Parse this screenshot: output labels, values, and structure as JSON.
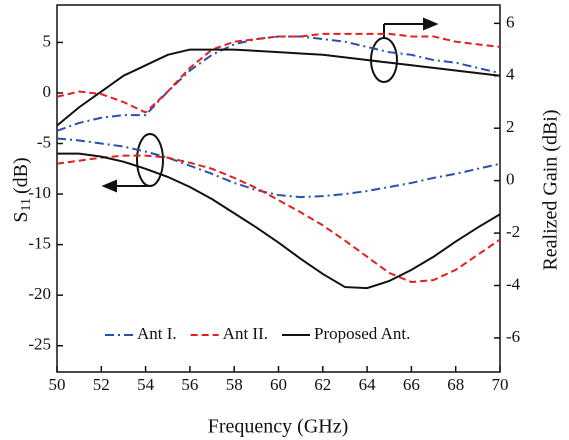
{
  "chart_data": {
    "type": "line",
    "xlabel": "Frequency (GHz)",
    "ylabel": [
      "S",
      "11",
      "(dB)"
    ],
    "y2label": "Realized Gain (dBi)",
    "x": [
      50,
      51,
      52,
      53,
      54,
      55,
      56,
      57,
      58,
      59,
      60,
      61,
      62,
      63,
      64,
      65,
      66,
      67,
      68,
      69,
      70
    ],
    "xlim": [
      50,
      70
    ],
    "xticks": [
      50,
      52,
      54,
      56,
      58,
      60,
      62,
      64,
      66,
      68,
      70
    ],
    "ylim": [
      -27.6,
      8.7
    ],
    "yticks": [
      -25,
      -20,
      -15,
      -10,
      -5,
      0,
      5
    ],
    "y2lim": [
      -7.3,
      6.7
    ],
    "y2ticks": [
      -6,
      -4,
      -2,
      0,
      2,
      4,
      6
    ],
    "series": [
      {
        "name": "Ant I.",
        "color": "#2a4fb0",
        "style": "dashdot",
        "values": [
          -4.5,
          -4.7,
          -5.0,
          -5.3,
          -5.8,
          -6.4,
          -7.2,
          -8.0,
          -8.9,
          -9.6,
          -10.1,
          -10.3,
          -10.2,
          -10.0,
          -9.7,
          -9.3,
          -8.9,
          -8.4,
          -8.0,
          -7.5,
          -7.0
        ]
      },
      {
        "name": "Ant II.",
        "color": "#e0201b",
        "style": "dashed",
        "values": [
          -7.0,
          -6.7,
          -6.4,
          -6.2,
          -6.2,
          -6.4,
          -6.9,
          -7.5,
          -8.4,
          -9.4,
          -10.6,
          -11.8,
          -13.1,
          -14.6,
          -16.2,
          -17.8,
          -18.7,
          -18.5,
          -17.5,
          -16.0,
          -14.5
        ]
      },
      {
        "name": "Proposed Ant.",
        "color": "#111111",
        "style": "solid",
        "values": [
          -6.0,
          -6.0,
          -6.3,
          -6.8,
          -7.5,
          -8.3,
          -9.3,
          -10.5,
          -11.9,
          -13.3,
          -14.8,
          -16.4,
          -17.9,
          -19.2,
          -19.3,
          -18.6,
          -17.5,
          -16.2,
          -14.7,
          -13.3,
          -12.0
        ]
      },
      {
        "axis": "y2",
        "color": "#2a4fb0",
        "style": "dashdot",
        "values": [
          1.9,
          2.2,
          2.4,
          2.5,
          2.5,
          3.4,
          4.2,
          4.8,
          5.2,
          5.4,
          5.5,
          5.5,
          5.4,
          5.3,
          5.1,
          4.9,
          4.8,
          4.6,
          4.5,
          4.3,
          4.1
        ]
      },
      {
        "axis": "y2",
        "color": "#e0201b",
        "style": "dashed",
        "values": [
          3.2,
          3.4,
          3.3,
          3.0,
          2.6,
          3.4,
          4.3,
          5.0,
          5.3,
          5.4,
          5.5,
          5.5,
          5.6,
          5.6,
          5.6,
          5.6,
          5.5,
          5.5,
          5.3,
          5.2,
          5.1
        ]
      },
      {
        "axis": "y2",
        "color": "#111111",
        "style": "solid",
        "values": [
          2.1,
          2.8,
          3.4,
          4.0,
          4.4,
          4.8,
          5.0,
          5.0,
          5.0,
          4.95,
          4.9,
          4.85,
          4.8,
          4.7,
          4.6,
          4.5,
          4.4,
          4.3,
          4.2,
          4.1,
          4.0
        ]
      }
    ]
  }
}
